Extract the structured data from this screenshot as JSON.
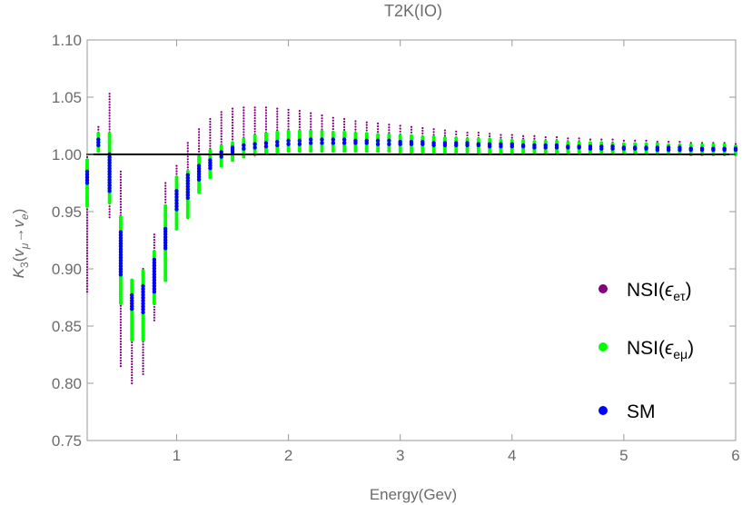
{
  "chart_data": {
    "type": "scatter",
    "title": "T2K(IO)",
    "xlabel": "Energy(Gev)",
    "ylabel": "K3(vμ→ve)",
    "ylabel_parts": {
      "main": "K",
      "sub": "3",
      "open": "(",
      "nu1": "v",
      "sub1": "μ",
      "arrow": "→",
      "nu2": "v",
      "sub2": "e",
      "close": ")"
    },
    "xlim": [
      0.2,
      6.0
    ],
    "ylim": [
      0.75,
      1.1
    ],
    "x_ticks": [
      1,
      2,
      3,
      4,
      5,
      6
    ],
    "x_tick_labels": [
      "1",
      "2",
      "3",
      "4",
      "5",
      "6"
    ],
    "y_ticks": [
      0.75,
      0.8,
      0.85,
      0.9,
      0.95,
      1.0,
      1.05,
      1.1
    ],
    "y_tick_labels": [
      "0.75",
      "0.80",
      "0.85",
      "0.90",
      "0.95",
      "1.00",
      "1.05",
      "1.10"
    ],
    "reference_line": 1.0,
    "legend_position": "right",
    "x": [
      0.2,
      0.3,
      0.4,
      0.5,
      0.6,
      0.7,
      0.8,
      0.9,
      1.0,
      1.1,
      1.2,
      1.3,
      1.4,
      1.5,
      1.6,
      1.7,
      1.8,
      1.9,
      2.0,
      2.1,
      2.2,
      2.3,
      2.4,
      2.5,
      2.6,
      2.7,
      2.8,
      2.9,
      3.0,
      3.1,
      3.2,
      3.3,
      3.4,
      3.5,
      3.6,
      3.7,
      3.8,
      3.9,
      4.0,
      4.1,
      4.2,
      4.3,
      4.4,
      4.5,
      4.6,
      4.7,
      4.8,
      4.9,
      5.0,
      5.1,
      5.2,
      5.3,
      5.4,
      5.5,
      5.6,
      5.7,
      5.8,
      5.9,
      6.0
    ],
    "series": [
      {
        "name": "NSI(εeτ)",
        "legend_main": "NSI(",
        "legend_eps": "ϵ",
        "legend_sub": "eτ",
        "legend_close": ")",
        "color": "#800080",
        "style": "range",
        "low": [
          0.88,
          1.0,
          0.945,
          0.815,
          0.8,
          0.808,
          0.855,
          0.905,
          0.95,
          0.965,
          0.978,
          0.986,
          0.992,
          0.996,
          0.998,
          0.999,
          1.0,
          1.0,
          1.0,
          1.0,
          1.0,
          1.0,
          1.0,
          1.0,
          1.0,
          1.0,
          1.0,
          1.0,
          1.0,
          1.0,
          1.0,
          1.0,
          1.0,
          1.0,
          1.0,
          1.0,
          1.0,
          1.0,
          1.0,
          1.0,
          1.0,
          1.0,
          1.0,
          1.0,
          1.0,
          1.0,
          1.0,
          1.0,
          1.0,
          1.0,
          1.0,
          1.0,
          1.0,
          1.0,
          1.0,
          1.0,
          1.0,
          1.0,
          1.0
        ],
        "high": [
          1.0,
          1.024,
          1.053,
          0.985,
          0.888,
          0.9,
          0.93,
          0.975,
          0.99,
          1.01,
          1.022,
          1.031,
          1.037,
          1.04,
          1.041,
          1.041,
          1.041,
          1.04,
          1.039,
          1.038,
          1.036,
          1.034,
          1.032,
          1.031,
          1.029,
          1.028,
          1.027,
          1.026,
          1.025,
          1.024,
          1.023,
          1.022,
          1.021,
          1.02,
          1.019,
          1.019,
          1.018,
          1.017,
          1.017,
          1.016,
          1.016,
          1.015,
          1.015,
          1.014,
          1.014,
          1.013,
          1.013,
          1.013,
          1.012,
          1.012,
          1.012,
          1.011,
          1.011,
          1.011,
          1.01,
          1.01,
          1.01,
          1.01,
          1.009
        ]
      },
      {
        "name": "NSI(εeμ)",
        "legend_main": "NSI(",
        "legend_eps": "ϵ",
        "legend_sub": "eμ",
        "legend_close": ")",
        "color": "#00ff00",
        "style": "range",
        "low": [
          0.955,
          1.003,
          0.958,
          0.87,
          0.838,
          0.838,
          0.87,
          0.89,
          0.935,
          0.945,
          0.967,
          0.98,
          0.99,
          0.995,
          0.998,
          1.0,
          1.001,
          1.002,
          1.003,
          1.003,
          1.003,
          1.003,
          1.003,
          1.003,
          1.003,
          1.003,
          1.003,
          1.003,
          1.002,
          1.002,
          1.002,
          1.002,
          1.002,
          1.002,
          1.002,
          1.001,
          1.001,
          1.001,
          1.001,
          1.001,
          1.001,
          1.001,
          1.001,
          1.001,
          1.001,
          1.001,
          1.001,
          1.001,
          1.001,
          1.001,
          1.001,
          1.001,
          1.001,
          1.001,
          1.0,
          1.0,
          1.0,
          1.0,
          1.0
        ],
        "high": [
          0.995,
          1.018,
          1.018,
          0.945,
          0.89,
          0.898,
          0.915,
          0.955,
          0.98,
          0.985,
          0.998,
          1.003,
          1.007,
          1.01,
          1.013,
          1.016,
          1.018,
          1.019,
          1.02,
          1.02,
          1.02,
          1.02,
          1.019,
          1.019,
          1.018,
          1.018,
          1.017,
          1.017,
          1.016,
          1.016,
          1.015,
          1.015,
          1.014,
          1.014,
          1.013,
          1.013,
          1.013,
          1.012,
          1.012,
          1.012,
          1.011,
          1.011,
          1.011,
          1.01,
          1.01,
          1.01,
          1.01,
          1.009,
          1.009,
          1.009,
          1.009,
          1.009,
          1.008,
          1.008,
          1.008,
          1.008,
          1.008,
          1.008,
          1.007
        ]
      },
      {
        "name": "SM",
        "legend_main": "SM",
        "color": "#0000ff",
        "style": "range",
        "low": [
          0.975,
          1.008,
          0.968,
          0.895,
          0.865,
          0.862,
          0.88,
          0.918,
          0.952,
          0.962,
          0.978,
          0.988,
          0.998,
          1.002,
          1.005,
          1.006,
          1.007,
          1.008,
          1.009,
          1.009,
          1.01,
          1.01,
          1.01,
          1.01,
          1.01,
          1.01,
          1.009,
          1.009,
          1.009,
          1.009,
          1.009,
          1.008,
          1.008,
          1.008,
          1.008,
          1.008,
          1.007,
          1.007,
          1.007,
          1.007,
          1.006,
          1.006,
          1.006,
          1.006,
          1.006,
          1.005,
          1.005,
          1.005,
          1.005,
          1.005,
          1.005,
          1.004,
          1.004,
          1.004,
          1.004,
          1.004,
          1.004,
          1.004,
          1.004
        ],
        "high": [
          0.985,
          1.013,
          1.0,
          0.932,
          0.877,
          0.885,
          0.908,
          0.935,
          0.968,
          0.982,
          0.99,
          0.995,
          1.002,
          1.006,
          1.008,
          1.009,
          1.01,
          1.011,
          1.012,
          1.012,
          1.013,
          1.013,
          1.013,
          1.013,
          1.012,
          1.012,
          1.012,
          1.012,
          1.011,
          1.011,
          1.011,
          1.01,
          1.01,
          1.01,
          1.01,
          1.009,
          1.009,
          1.009,
          1.009,
          1.008,
          1.008,
          1.008,
          1.008,
          1.007,
          1.007,
          1.007,
          1.007,
          1.007,
          1.006,
          1.006,
          1.006,
          1.006,
          1.006,
          1.006,
          1.005,
          1.005,
          1.005,
          1.005,
          1.005
        ]
      }
    ]
  }
}
